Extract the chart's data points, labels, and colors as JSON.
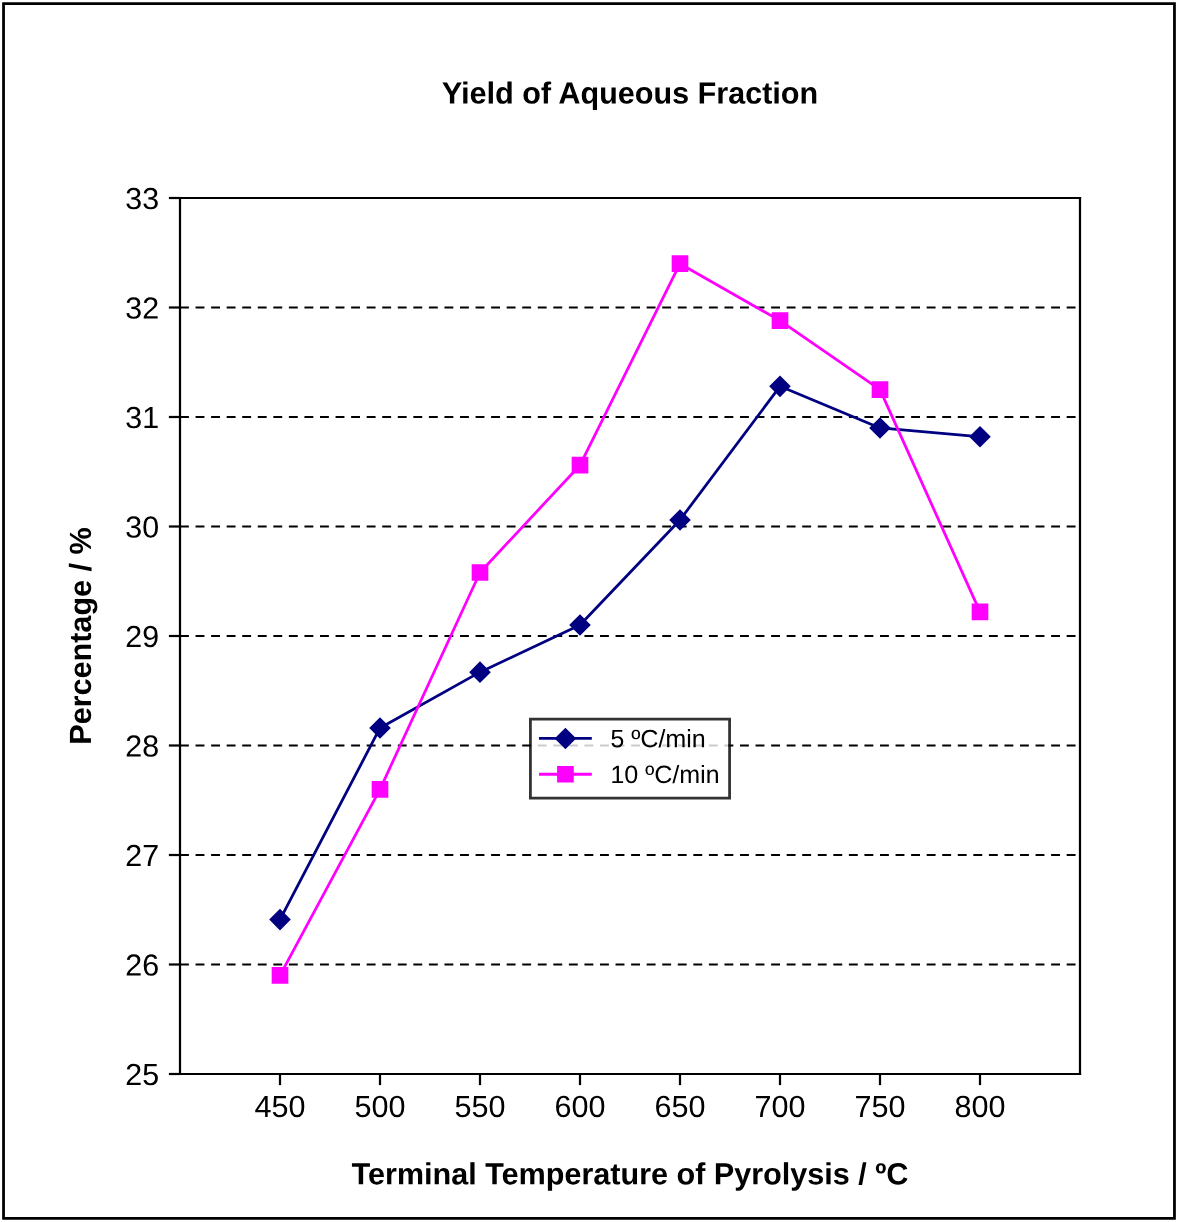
{
  "chart_data": {
    "type": "line",
    "title": "Yield of Aqueous Fraction",
    "xlabel": "Terminal Temperature of Pyrolysis / ºC",
    "ylabel": "Percentage / %",
    "categories": [
      "450",
      "500",
      "550",
      "600",
      "650",
      "700",
      "750",
      "800"
    ],
    "series": [
      {
        "name": "5 ºC/min",
        "color": "#000080",
        "marker": "diamond",
        "values": [
          26.41,
          28.16,
          28.67,
          29.1,
          30.06,
          31.28,
          30.9,
          30.82
        ]
      },
      {
        "name": "10 ºC/min",
        "color": "#ff00ff",
        "marker": "square",
        "values": [
          25.9,
          27.6,
          29.58,
          30.56,
          32.4,
          31.88,
          31.25,
          29.22
        ]
      }
    ],
    "ylim": [
      25,
      33
    ],
    "yticks": [
      25,
      26,
      27,
      28,
      29,
      30,
      31,
      32,
      33
    ],
    "grid": "y",
    "legend": "center"
  }
}
